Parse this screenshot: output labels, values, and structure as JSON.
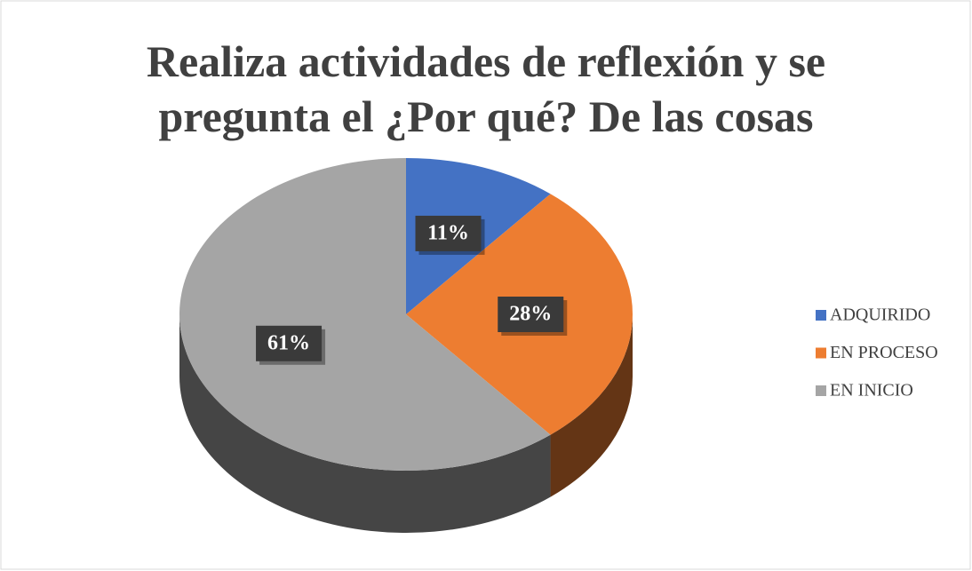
{
  "chart_data": {
    "type": "pie",
    "title": "Realiza actividades de reflexión y se pregunta el ¿Por qué? De las cosas",
    "categories": [
      "ADQUIRIDO",
      "EN PROCESO",
      "EN INICIO"
    ],
    "values": [
      11,
      28,
      61
    ],
    "value_labels": [
      "11%",
      "28%",
      "61%"
    ],
    "colors": [
      "#4472c4",
      "#ed7d31",
      "#a5a5a5"
    ],
    "legend": "right"
  }
}
